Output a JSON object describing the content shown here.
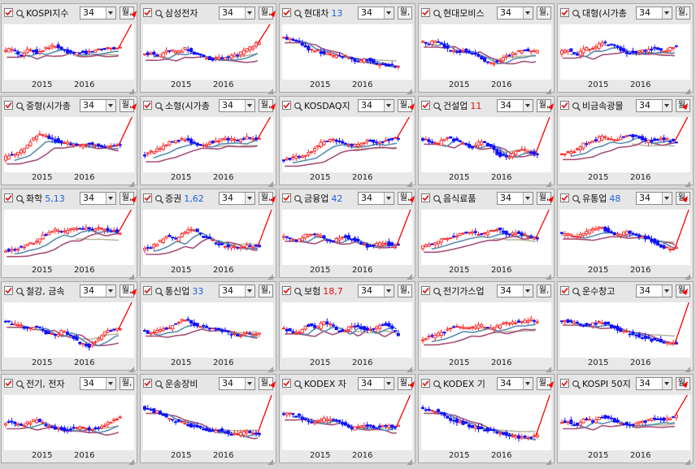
{
  "period_default": "34",
  "timeframe_label": "월,",
  "x_ticks": [
    "2015",
    "2016"
  ],
  "colors": {
    "up": "#ff2020",
    "down": "#1010ff",
    "ma_blue": "#5a8fb3",
    "ma_pink": "#a8507a",
    "ma_grey": "#b8b8a0",
    "arrow": "#ff0000"
  },
  "panels": [
    {
      "name": "KOSPI지수",
      "value": "",
      "trend": [
        0.52,
        0.6,
        0.45,
        0.58,
        0.5,
        0.62,
        0.66,
        0.55,
        0.48,
        0.5,
        0.52,
        0.58,
        0.62,
        0.6,
        0.66,
        0.7
      ]
    },
    {
      "name": "삼성전자",
      "value": "",
      "trend": [
        0.45,
        0.5,
        0.42,
        0.56,
        0.52,
        0.6,
        0.5,
        0.4,
        0.35,
        0.38,
        0.4,
        0.46,
        0.55,
        0.68,
        0.8,
        0.9
      ]
    },
    {
      "name": "현대차",
      "value": "13",
      "trend": [
        0.85,
        0.82,
        0.78,
        0.6,
        0.55,
        0.5,
        0.42,
        0.45,
        0.38,
        0.3,
        0.35,
        0.25,
        0.22,
        0.2,
        0.18,
        0.2
      ]
    },
    {
      "name": "현대모비스",
      "value": "",
      "trend": [
        0.75,
        0.72,
        0.78,
        0.6,
        0.52,
        0.55,
        0.48,
        0.4,
        0.25,
        0.3,
        0.45,
        0.5,
        0.55,
        0.52,
        0.56,
        0.62
      ]
    },
    {
      "name": "대형(시가총",
      "value": "",
      "trend": [
        0.5,
        0.58,
        0.45,
        0.62,
        0.6,
        0.72,
        0.7,
        0.58,
        0.5,
        0.52,
        0.55,
        0.6,
        0.55,
        0.62,
        0.65,
        0.7
      ]
    },
    {
      "name": "중형(시가총",
      "value": "",
      "trend": [
        0.2,
        0.28,
        0.35,
        0.55,
        0.75,
        0.7,
        0.62,
        0.58,
        0.52,
        0.5,
        0.55,
        0.5,
        0.48,
        0.5,
        0.48,
        0.45
      ]
    },
    {
      "name": "소형(시가총",
      "value": "",
      "trend": [
        0.25,
        0.35,
        0.42,
        0.55,
        0.6,
        0.65,
        0.55,
        0.5,
        0.58,
        0.62,
        0.65,
        0.6,
        0.68,
        0.65,
        0.62,
        0.66
      ]
    },
    {
      "name": "KOSDAQ지",
      "value": "",
      "trend": [
        0.15,
        0.2,
        0.25,
        0.3,
        0.45,
        0.6,
        0.65,
        0.55,
        0.5,
        0.52,
        0.6,
        0.58,
        0.62,
        0.65,
        0.68,
        0.7
      ]
    },
    {
      "name": "건설업",
      "value": "11",
      "trend": [
        0.65,
        0.6,
        0.5,
        0.7,
        0.62,
        0.55,
        0.45,
        0.58,
        0.5,
        0.3,
        0.22,
        0.35,
        0.4,
        0.32,
        0.3,
        0.42
      ]
    },
    {
      "name": "비금속광물",
      "value": "",
      "trend": [
        0.3,
        0.35,
        0.4,
        0.55,
        0.6,
        0.7,
        0.62,
        0.65,
        0.75,
        0.7,
        0.6,
        0.62,
        0.66,
        0.6,
        0.58,
        0.62
      ]
    },
    {
      "name": "화학",
      "value": "5,13",
      "trend": [
        0.2,
        0.22,
        0.3,
        0.35,
        0.45,
        0.6,
        0.7,
        0.62,
        0.72,
        0.75,
        0.7,
        0.72,
        0.68,
        0.65,
        0.6,
        0.6
      ]
    },
    {
      "name": "증권",
      "value": "1,62",
      "trend": [
        0.25,
        0.3,
        0.4,
        0.55,
        0.45,
        0.65,
        0.7,
        0.55,
        0.45,
        0.35,
        0.3,
        0.28,
        0.32,
        0.3,
        0.3,
        0.33
      ]
    },
    {
      "name": "금융업",
      "value": "42",
      "trend": [
        0.55,
        0.5,
        0.45,
        0.6,
        0.58,
        0.5,
        0.42,
        0.55,
        0.5,
        0.4,
        0.3,
        0.35,
        0.4,
        0.32,
        0.38,
        0.45
      ]
    },
    {
      "name": "음식료품",
      "value": "",
      "trend": [
        0.3,
        0.35,
        0.42,
        0.5,
        0.55,
        0.6,
        0.62,
        0.58,
        0.65,
        0.7,
        0.6,
        0.62,
        0.58,
        0.5,
        0.45,
        0.48
      ]
    },
    {
      "name": "유통업",
      "value": "48",
      "trend": [
        0.6,
        0.58,
        0.55,
        0.62,
        0.7,
        0.72,
        0.62,
        0.58,
        0.65,
        0.55,
        0.5,
        0.42,
        0.3,
        0.25,
        0.3,
        0.38
      ]
    },
    {
      "name": "철강, 금속",
      "value": "",
      "trend": [
        0.7,
        0.68,
        0.62,
        0.55,
        0.6,
        0.45,
        0.4,
        0.5,
        0.35,
        0.2,
        0.15,
        0.3,
        0.5,
        0.55,
        0.5,
        0.55
      ]
    },
    {
      "name": "통신업",
      "value": "33",
      "trend": [
        0.5,
        0.45,
        0.52,
        0.55,
        0.7,
        0.75,
        0.65,
        0.6,
        0.55,
        0.5,
        0.45,
        0.4,
        0.42,
        0.45,
        0.4,
        0.45
      ]
    },
    {
      "name": "보험",
      "value": "18,7",
      "trend": [
        0.55,
        0.5,
        0.45,
        0.65,
        0.55,
        0.7,
        0.6,
        0.45,
        0.62,
        0.6,
        0.5,
        0.58,
        0.65,
        0.5,
        0.35,
        0.48
      ]
    },
    {
      "name": "전기가스업",
      "value": "",
      "trend": [
        0.3,
        0.35,
        0.4,
        0.5,
        0.6,
        0.55,
        0.58,
        0.62,
        0.55,
        0.6,
        0.68,
        0.7,
        0.72,
        0.75,
        0.7,
        0.65
      ]
    },
    {
      "name": "운수창고",
      "value": "",
      "trend": [
        0.75,
        0.72,
        0.68,
        0.62,
        0.66,
        0.7,
        0.6,
        0.52,
        0.45,
        0.4,
        0.32,
        0.28,
        0.25,
        0.2,
        0.22,
        0.25
      ]
    },
    {
      "name": "전기, 전자",
      "value": "",
      "trend": [
        0.5,
        0.55,
        0.45,
        0.52,
        0.58,
        0.45,
        0.4,
        0.35,
        0.38,
        0.42,
        0.35,
        0.4,
        0.5,
        0.6,
        0.7,
        0.82
      ]
    },
    {
      "name": "운송장비",
      "value": "",
      "trend": [
        0.85,
        0.8,
        0.75,
        0.6,
        0.55,
        0.5,
        0.42,
        0.38,
        0.3,
        0.35,
        0.28,
        0.25,
        0.3,
        0.28,
        0.22,
        0.25
      ]
    },
    {
      "name": "KODEX 자",
      "value": "",
      "trend": [
        0.7,
        0.72,
        0.68,
        0.55,
        0.5,
        0.6,
        0.58,
        0.5,
        0.38,
        0.42,
        0.45,
        0.4,
        0.45,
        0.42,
        0.48,
        0.5
      ]
    },
    {
      "name": "KODEX 기",
      "value": "",
      "trend": [
        0.85,
        0.82,
        0.78,
        0.65,
        0.55,
        0.5,
        0.42,
        0.38,
        0.35,
        0.3,
        0.25,
        0.2,
        0.18,
        0.2,
        0.25,
        0.3
      ]
    },
    {
      "name": "KOSPI 50지",
      "value": "",
      "trend": [
        0.5,
        0.55,
        0.45,
        0.62,
        0.55,
        0.65,
        0.6,
        0.5,
        0.48,
        0.5,
        0.55,
        0.6,
        0.58,
        0.65,
        0.7,
        0.75
      ]
    }
  ]
}
